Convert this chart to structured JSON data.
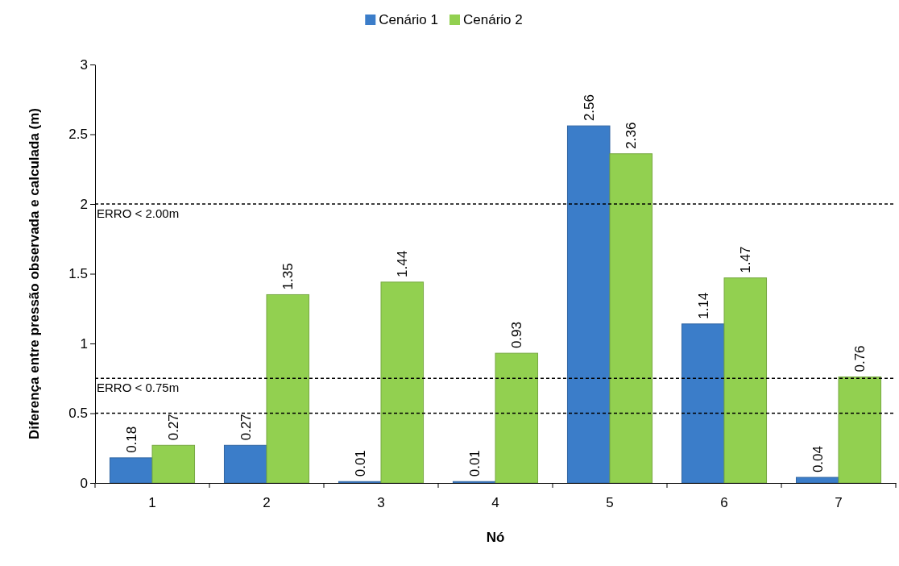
{
  "chart_data": {
    "type": "bar",
    "xlabel": "Nó",
    "ylabel": "Diferença entre pressão observada e calculada (m)",
    "categories": [
      "1",
      "2",
      "3",
      "4",
      "5",
      "6",
      "7"
    ],
    "series": [
      {
        "name": "Cenário 1",
        "color": "#3b7dc9",
        "values": [
          0.18,
          0.27,
          0.01,
          0.01,
          2.56,
          1.14,
          0.04
        ]
      },
      {
        "name": "Cenário 2",
        "color": "#92d050",
        "values": [
          0.27,
          1.35,
          1.44,
          0.93,
          2.36,
          1.47,
          0.76
        ]
      }
    ],
    "ylim": [
      0,
      3
    ],
    "yticks": [
      0,
      0.5,
      1,
      1.5,
      2,
      2.5,
      3
    ],
    "grid": false,
    "legend": "top",
    "data_labels": true,
    "ref_lines": [
      {
        "axis": "y",
        "value": 2,
        "label": "ERRO < 2.00m",
        "color": "#000000",
        "line_style": "dashed"
      },
      {
        "axis": "y",
        "value": 0.75,
        "label": "ERRO < 0.75m",
        "color": "#000000",
        "line_style": "dashed"
      },
      {
        "axis": "y",
        "value": 0.5,
        "label": null,
        "color": "#000000",
        "line_style": "dashed"
      }
    ]
  }
}
